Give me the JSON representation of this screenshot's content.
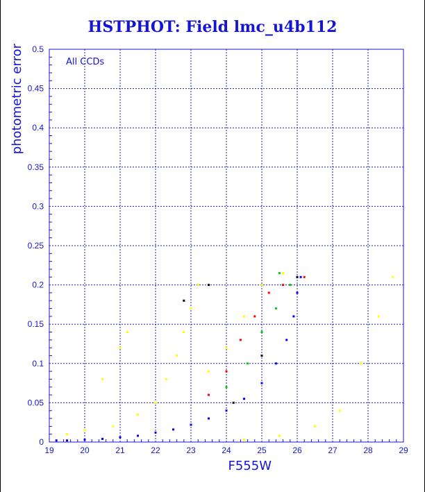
{
  "chart_data": {
    "type": "scatter",
    "title": "HSTPHOT: Field lmc_u4b112",
    "xlabel": "F555W",
    "ylabel": "photometric error",
    "annotation": "All CCDs",
    "xlim": [
      19,
      29
    ],
    "ylim": [
      0,
      0.5
    ],
    "x_ticks": [
      "19",
      "20",
      "21",
      "22",
      "23",
      "24",
      "25",
      "26",
      "27",
      "28",
      "29"
    ],
    "y_ticks": [
      "0",
      "0.05",
      "0.1",
      "0.15",
      "0.2",
      "0.25",
      "0.3",
      "0.35",
      "0.4",
      "0.45",
      "0.5"
    ],
    "grid": true,
    "series_colors": {
      "blue": "#0000ff",
      "yellow": "#ffff00",
      "red": "#ff0000",
      "green": "#00cc00",
      "black": "#000000"
    },
    "points": [
      {
        "color": "blue",
        "x": 19.2,
        "y": 0.002
      },
      {
        "color": "blue",
        "x": 19.5,
        "y": 0.002
      },
      {
        "color": "blue",
        "x": 20.0,
        "y": 0.003
      },
      {
        "color": "blue",
        "x": 20.5,
        "y": 0.004
      },
      {
        "color": "blue",
        "x": 21.0,
        "y": 0.006
      },
      {
        "color": "blue",
        "x": 21.5,
        "y": 0.008
      },
      {
        "color": "blue",
        "x": 22.0,
        "y": 0.012
      },
      {
        "color": "blue",
        "x": 22.5,
        "y": 0.016
      },
      {
        "color": "blue",
        "x": 23.0,
        "y": 0.022
      },
      {
        "color": "blue",
        "x": 23.5,
        "y": 0.03
      },
      {
        "color": "blue",
        "x": 24.0,
        "y": 0.04
      },
      {
        "color": "blue",
        "x": 24.5,
        "y": 0.055
      },
      {
        "color": "blue",
        "x": 25.0,
        "y": 0.075
      },
      {
        "color": "blue",
        "x": 25.4,
        "y": 0.1
      },
      {
        "color": "blue",
        "x": 25.7,
        "y": 0.13
      },
      {
        "color": "blue",
        "x": 25.9,
        "y": 0.16
      },
      {
        "color": "blue",
        "x": 26.0,
        "y": 0.19
      },
      {
        "color": "blue",
        "x": 26.1,
        "y": 0.21
      },
      {
        "color": "yellow",
        "x": 19.5,
        "y": 0.01
      },
      {
        "color": "yellow",
        "x": 20.0,
        "y": 0.015
      },
      {
        "color": "yellow",
        "x": 20.8,
        "y": 0.02
      },
      {
        "color": "yellow",
        "x": 21.5,
        "y": 0.035
      },
      {
        "color": "yellow",
        "x": 22.0,
        "y": 0.05
      },
      {
        "color": "yellow",
        "x": 22.3,
        "y": 0.08
      },
      {
        "color": "yellow",
        "x": 22.6,
        "y": 0.11
      },
      {
        "color": "yellow",
        "x": 22.8,
        "y": 0.14
      },
      {
        "color": "yellow",
        "x": 23.0,
        "y": 0.17
      },
      {
        "color": "yellow",
        "x": 23.2,
        "y": 0.2
      },
      {
        "color": "yellow",
        "x": 23.5,
        "y": 0.09
      },
      {
        "color": "yellow",
        "x": 24.0,
        "y": 0.12
      },
      {
        "color": "yellow",
        "x": 24.5,
        "y": 0.16
      },
      {
        "color": "yellow",
        "x": 25.0,
        "y": 0.2
      },
      {
        "color": "yellow",
        "x": 25.6,
        "y": 0.215
      },
      {
        "color": "yellow",
        "x": 21.0,
        "y": 0.12
      },
      {
        "color": "yellow",
        "x": 21.2,
        "y": 0.14
      },
      {
        "color": "yellow",
        "x": 20.5,
        "y": 0.08
      },
      {
        "color": "yellow",
        "x": 24.5,
        "y": 0.003
      },
      {
        "color": "yellow",
        "x": 25.5,
        "y": 0.008
      },
      {
        "color": "yellow",
        "x": 26.5,
        "y": 0.02
      },
      {
        "color": "yellow",
        "x": 27.2,
        "y": 0.04
      },
      {
        "color": "yellow",
        "x": 27.8,
        "y": 0.1
      },
      {
        "color": "yellow",
        "x": 28.3,
        "y": 0.16
      },
      {
        "color": "yellow",
        "x": 28.7,
        "y": 0.21
      },
      {
        "color": "red",
        "x": 23.5,
        "y": 0.06
      },
      {
        "color": "red",
        "x": 24.0,
        "y": 0.09
      },
      {
        "color": "red",
        "x": 24.4,
        "y": 0.13
      },
      {
        "color": "red",
        "x": 24.8,
        "y": 0.16
      },
      {
        "color": "red",
        "x": 25.2,
        "y": 0.19
      },
      {
        "color": "red",
        "x": 25.6,
        "y": 0.2
      },
      {
        "color": "red",
        "x": 26.2,
        "y": 0.21
      },
      {
        "color": "green",
        "x": 24.0,
        "y": 0.07
      },
      {
        "color": "green",
        "x": 24.6,
        "y": 0.1
      },
      {
        "color": "green",
        "x": 25.0,
        "y": 0.14
      },
      {
        "color": "green",
        "x": 25.4,
        "y": 0.17
      },
      {
        "color": "green",
        "x": 25.8,
        "y": 0.2
      },
      {
        "color": "green",
        "x": 25.5,
        "y": 0.215
      },
      {
        "color": "black",
        "x": 22.8,
        "y": 0.18
      },
      {
        "color": "black",
        "x": 23.5,
        "y": 0.2
      },
      {
        "color": "black",
        "x": 24.2,
        "y": 0.05
      },
      {
        "color": "black",
        "x": 25.0,
        "y": 0.11
      },
      {
        "color": "black",
        "x": 26.0,
        "y": 0.21
      }
    ]
  }
}
